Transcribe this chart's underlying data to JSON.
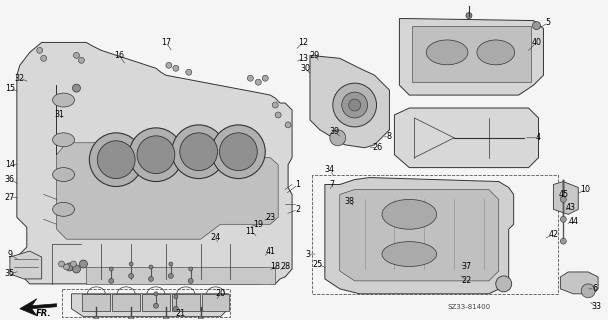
{
  "background_color": "#f5f5f5",
  "line_color": "#333333",
  "fill_light": "#e8e8e8",
  "fill_mid": "#d0d0d0",
  "fill_dark": "#b8b8b8",
  "diagram_code": "SZ33-81400",
  "fig_width": 6.08,
  "fig_height": 3.2,
  "dpi": 100,
  "label_fontsize": 5.8,
  "code_fontsize": 5.0,
  "lw_main": 0.7,
  "lw_thin": 0.4,
  "lw_leader": 0.4
}
